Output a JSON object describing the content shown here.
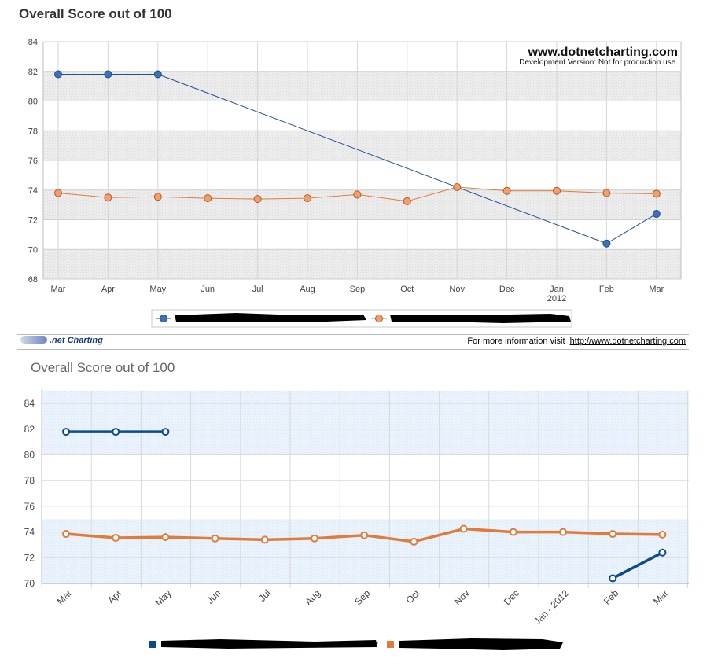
{
  "strip": {
    "logo_text": ".net Charting",
    "info_text": "For more information visit",
    "info_link": "http://www.dotnetcharting.com"
  },
  "chart_data": [
    {
      "type": "line",
      "title": "Overall Score out of 100",
      "watermark": "www.dotnetcharting.com",
      "watermark_note": "Development Version: Not for production use.",
      "categories": [
        "Mar",
        "Apr",
        "May",
        "Jun",
        "Jul",
        "Aug",
        "Sep",
        "Oct",
        "Nov",
        "Dec",
        "Jan",
        "Feb",
        "Mar"
      ],
      "category_sublabels": [
        "",
        "",
        "",
        "",
        "",
        "",
        "",
        "",
        "",
        "",
        "2012",
        "",
        ""
      ],
      "ylim": [
        68,
        84
      ],
      "yticks": [
        68,
        70,
        72,
        74,
        76,
        78,
        80,
        82,
        84
      ],
      "grid": true,
      "legend_position": "bottom",
      "series": [
        {
          "color": "#1f4f8f",
          "values": [
            81.8,
            81.8,
            81.8,
            null,
            null,
            null,
            null,
            null,
            null,
            null,
            null,
            70.4,
            72.4
          ]
        },
        {
          "color": "#e07b3c",
          "values": [
            73.8,
            73.5,
            73.55,
            73.45,
            73.4,
            73.45,
            73.7,
            73.25,
            74.2,
            73.95,
            73.95,
            73.8,
            73.75
          ]
        }
      ]
    },
    {
      "type": "line",
      "title": "Overall Score out of 100",
      "categories": [
        "Mar",
        "Apr",
        "May",
        "Jun",
        "Jul",
        "Aug",
        "Sep",
        "Oct",
        "Nov",
        "Dec",
        "Jan - 2012",
        "Feb",
        "Mar"
      ],
      "ylim": [
        70,
        85
      ],
      "yticks": [
        70,
        72,
        74,
        76,
        78,
        80,
        82,
        84
      ],
      "grid": true,
      "legend_position": "bottom",
      "series": [
        {
          "color": "#0b4a8b",
          "values": [
            81.8,
            81.8,
            81.8,
            null,
            null,
            null,
            null,
            null,
            null,
            null,
            null,
            70.4,
            72.4
          ]
        },
        {
          "color": "#e07b3c",
          "values": [
            73.85,
            73.55,
            73.6,
            73.5,
            73.4,
            73.5,
            73.75,
            73.25,
            74.25,
            74.0,
            74.0,
            73.85,
            73.8
          ]
        }
      ]
    }
  ]
}
